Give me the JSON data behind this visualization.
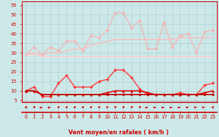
{
  "x": [
    0,
    1,
    2,
    3,
    4,
    5,
    6,
    7,
    8,
    9,
    10,
    11,
    12,
    13,
    14,
    15,
    16,
    17,
    18,
    19,
    20,
    21,
    22,
    23
  ],
  "series": [
    {
      "label": "rafales_light1",
      "color": "#ffaaaa",
      "lw": 0.8,
      "marker": "D",
      "markersize": 2.0,
      "y": [
        29,
        33,
        29,
        33,
        31,
        36,
        36,
        31,
        39,
        38,
        42,
        51,
        51,
        43,
        47,
        32,
        32,
        46,
        33,
        39,
        40,
        30,
        41,
        42
      ]
    },
    {
      "label": "rafales_light2",
      "color": "#ffbbbb",
      "lw": 1.0,
      "marker": null,
      "markersize": 0,
      "y": [
        29,
        30,
        29,
        30,
        30,
        31,
        32,
        32,
        34,
        35,
        36,
        37,
        37,
        37,
        37,
        37,
        37,
        37,
        37,
        38,
        38,
        38,
        38,
        38
      ]
    },
    {
      "label": "vent_light",
      "color": "#ffcccc",
      "lw": 1.0,
      "marker": null,
      "markersize": 0,
      "y": [
        29,
        29,
        28,
        28,
        28,
        28,
        28,
        28,
        28,
        28,
        28,
        28,
        28,
        28,
        28,
        28,
        28,
        28,
        28,
        28,
        28,
        28,
        28,
        28
      ]
    },
    {
      "label": "rafales_dark",
      "color": "#ff3333",
      "lw": 1.0,
      "marker": "D",
      "markersize": 2.0,
      "y": [
        10,
        12,
        7,
        7,
        14,
        18,
        12,
        12,
        12,
        15,
        16,
        21,
        21,
        17,
        11,
        8,
        8,
        8,
        8,
        9,
        8,
        8,
        13,
        14
      ]
    },
    {
      "label": "vent_dark1",
      "color": "#cc0000",
      "lw": 1.0,
      "marker": "D",
      "markersize": 1.8,
      "y": [
        10,
        10,
        8,
        8,
        8,
        8,
        8,
        8,
        8,
        8,
        8,
        8,
        8,
        8,
        8,
        8,
        8,
        8,
        8,
        8,
        8,
        8,
        8,
        8
      ]
    },
    {
      "label": "vent_dark2",
      "color": "#dd0000",
      "lw": 1.2,
      "marker": "^",
      "markersize": 2.5,
      "y": [
        10,
        10,
        8,
        8,
        8,
        8,
        8,
        8,
        8,
        8,
        9,
        10,
        10,
        10,
        10,
        9,
        8,
        8,
        8,
        8,
        8,
        8,
        9,
        10
      ]
    },
    {
      "label": "vent_dark3",
      "color": "#bb0000",
      "lw": 1.0,
      "marker": "D",
      "markersize": 1.5,
      "y": [
        10,
        10,
        8,
        8,
        8,
        8,
        8,
        8,
        8,
        8,
        8,
        8,
        8,
        8,
        8,
        8,
        8,
        8,
        8,
        8,
        8,
        8,
        8,
        8
      ]
    }
  ],
  "wind_arrows": {
    "color": "#cc0000",
    "angles_deg": [
      45,
      30,
      15,
      15,
      45,
      45,
      45,
      45,
      45,
      45,
      45,
      45,
      45,
      30,
      30,
      15,
      10,
      10,
      10,
      10,
      5,
      5,
      5,
      45
    ]
  },
  "xlabel": "Vent moyen/en rafales ( km/h )",
  "ylim": [
    4,
    57
  ],
  "xlim": [
    -0.5,
    23.5
  ],
  "yticks": [
    5,
    10,
    15,
    20,
    25,
    30,
    35,
    40,
    45,
    50,
    55
  ],
  "xticks": [
    0,
    1,
    2,
    3,
    4,
    5,
    6,
    7,
    8,
    9,
    10,
    11,
    12,
    13,
    14,
    15,
    16,
    17,
    18,
    19,
    20,
    21,
    22,
    23
  ],
  "bg_color": "#cce8e8",
  "grid_color": "#aacccc",
  "axis_color": "#cc0000",
  "label_color": "#cc0000",
  "tick_color": "#cc0000",
  "tick_fontsize": 5.0,
  "xlabel_fontsize": 6.0
}
